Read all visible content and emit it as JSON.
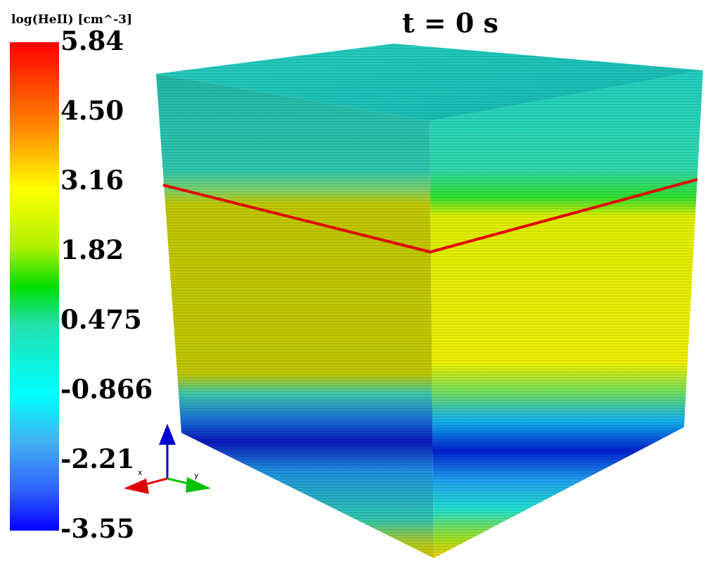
{
  "colorbar": {
    "title": "log(HeII) [cm^-3]",
    "ticks": [
      "5.84",
      "4.50",
      "3.16",
      "1.82",
      "0.475",
      "-0.866",
      "-2.21",
      "-3.55"
    ]
  },
  "time_label": "t = 0 s",
  "axes": {
    "x_label": "x",
    "y_label": "y",
    "x_color": "#e00000",
    "y_color": "#00c000",
    "z_color": "#0000d0"
  }
}
